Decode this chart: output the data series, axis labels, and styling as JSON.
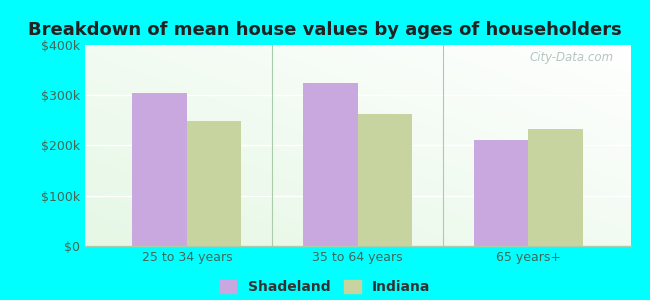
{
  "title": "Breakdown of mean house values by ages of householders",
  "categories": [
    "25 to 34 years",
    "35 to 64 years",
    "65 years+"
  ],
  "shadeland_values": [
    305000,
    325000,
    210000
  ],
  "indiana_values": [
    248000,
    263000,
    232000
  ],
  "shadeland_color": "#c9a8e0",
  "indiana_color": "#c8d4a0",
  "bar_width": 0.32,
  "ylim": [
    0,
    400000
  ],
  "yticks": [
    0,
    100000,
    200000,
    300000,
    400000
  ],
  "ytick_labels": [
    "$0",
    "$100k",
    "$200k",
    "$300k",
    "$400k"
  ],
  "background_color": "#00FFFF",
  "plot_bg_color": "#eaf5ea",
  "title_fontsize": 13,
  "tick_fontsize": 9,
  "legend_fontsize": 10,
  "watermark": "City-Data.com"
}
